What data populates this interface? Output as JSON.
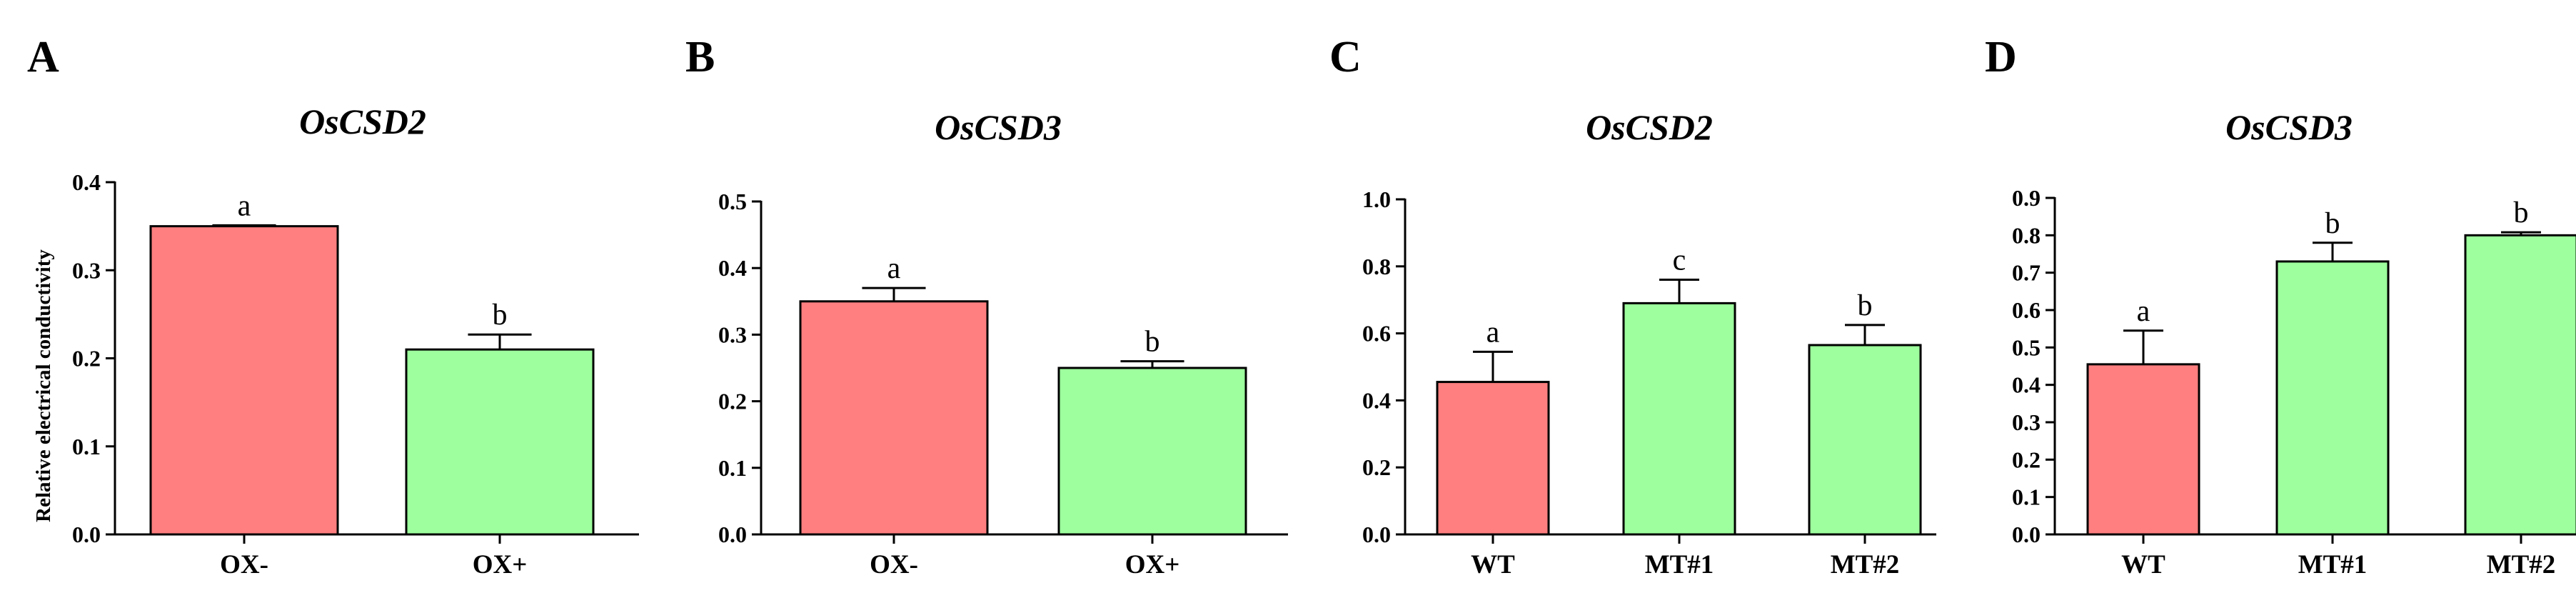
{
  "colors": {
    "red": "#ff7f80",
    "green": "#9dff9d",
    "axis": "#000000"
  },
  "chart_data": [
    {
      "panel": "A",
      "type": "bar",
      "title": "OsCSD2",
      "ylabel": "Relative electrical conductivity",
      "xlabel": "",
      "ylim": [
        0,
        0.4
      ],
      "yticks": [
        "0.0",
        "0.1",
        "0.2",
        "0.3",
        "0.4"
      ],
      "categories": [
        "OX-",
        "OX+"
      ],
      "values": [
        0.35,
        0.21
      ],
      "errors": [
        0.001,
        0.017
      ],
      "significance": [
        "a",
        "b"
      ],
      "bar_colors": [
        "red",
        "green"
      ]
    },
    {
      "panel": "B",
      "type": "bar",
      "title": "OsCSD3",
      "ylabel": "",
      "xlabel": "",
      "ylim": [
        0,
        0.5
      ],
      "yticks": [
        "0.0",
        "0.1",
        "0.2",
        "0.3",
        "0.4",
        "0.5"
      ],
      "categories": [
        "OX-",
        "OX+"
      ],
      "values": [
        0.35,
        0.25
      ],
      "errors": [
        0.02,
        0.01
      ],
      "significance": [
        "a",
        "b"
      ],
      "bar_colors": [
        "red",
        "green"
      ]
    },
    {
      "panel": "C",
      "type": "bar",
      "title": "OsCSD2",
      "ylabel": "",
      "xlabel": "",
      "ylim": [
        0,
        1.0
      ],
      "yticks": [
        "0.0",
        "0.2",
        "0.4",
        "0.6",
        "0.8",
        "1.0"
      ],
      "categories": [
        "WT",
        "MT#1",
        "MT#2"
      ],
      "values": [
        0.455,
        0.69,
        0.565
      ],
      "errors": [
        0.09,
        0.07,
        0.06
      ],
      "significance": [
        "a",
        "c",
        "b"
      ],
      "bar_colors": [
        "red",
        "green",
        "green"
      ]
    },
    {
      "panel": "D",
      "type": "bar",
      "title": "OsCSD3",
      "ylabel": "",
      "xlabel": "",
      "ylim": [
        0,
        0.9
      ],
      "yticks": [
        "0.0",
        "0.1",
        "0.2",
        "0.3",
        "0.4",
        "0.5",
        "0.6",
        "0.7",
        "0.8",
        "0.9"
      ],
      "categories": [
        "WT",
        "MT#1",
        "MT#2"
      ],
      "values": [
        0.455,
        0.73,
        0.8
      ],
      "errors": [
        0.09,
        0.05,
        0.008
      ],
      "significance": [
        "a",
        "b",
        "b"
      ],
      "bar_colors": [
        "red",
        "green",
        "green"
      ]
    }
  ]
}
